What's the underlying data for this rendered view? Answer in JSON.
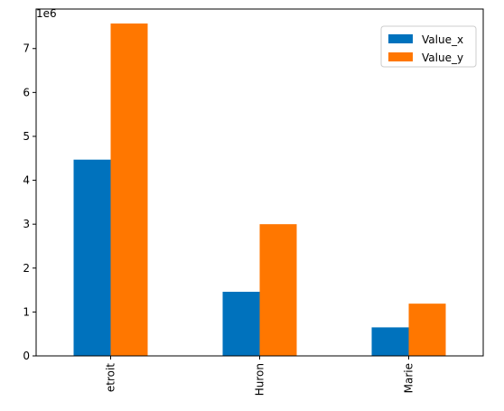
{
  "chart_data": {
    "type": "bar",
    "categories": [
      "Detroit",
      "Huron",
      "Marie"
    ],
    "category_label_display": [
      "etroit",
      "Huron",
      "Marie"
    ],
    "series": [
      {
        "name": "Value_x",
        "color": "#0072BD",
        "values": [
          4470000,
          1460000,
          650000
        ]
      },
      {
        "name": "Value_y",
        "color": "#FF7700",
        "values": [
          7570000,
          3000000,
          1190000
        ]
      }
    ],
    "ylim": [
      0,
      7900000
    ],
    "yticks": [
      0,
      1000000,
      2000000,
      3000000,
      4000000,
      5000000,
      6000000,
      7000000
    ],
    "ytick_labels": [
      "0",
      "1",
      "2",
      "3",
      "4",
      "5",
      "6",
      "7"
    ],
    "y_offset_label": "1e6",
    "legend_position": "top-right",
    "grid": false
  }
}
